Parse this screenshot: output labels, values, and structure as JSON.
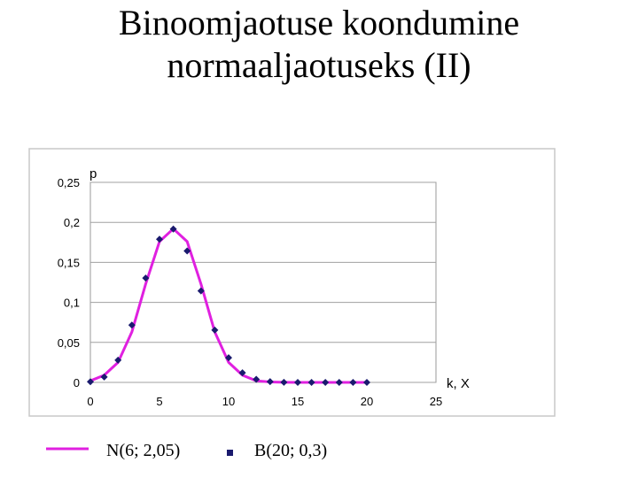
{
  "title": {
    "line1": "Binoomjaotuse koondumine",
    "line2": "normaaljaotuseks (II)"
  },
  "chart_data": {
    "type": "line",
    "ylabel": "p",
    "xlabel": "k, X",
    "xlim": [
      0,
      25
    ],
    "ylim": [
      0,
      0.25
    ],
    "x_ticks": [
      0,
      5,
      10,
      15,
      20,
      25
    ],
    "x_tick_labels": [
      "0",
      "5",
      "10",
      "15",
      "20",
      "25"
    ],
    "y_ticks": [
      0,
      0.05,
      0.1,
      0.15,
      0.2,
      0.25
    ],
    "y_tick_labels": [
      "0",
      "0,05",
      "0,1",
      "0,15",
      "0,2",
      "0,25"
    ],
    "grid": true,
    "legend_position": "bottom",
    "series": [
      {
        "name": "N(6; 2,05)",
        "kind": "line",
        "color": "#e020e0",
        "x": [
          0,
          1,
          2,
          3,
          4,
          5,
          6,
          7,
          8,
          9,
          10,
          11,
          12,
          13,
          14,
          15,
          16,
          17,
          18,
          19,
          20
        ],
        "y": [
          0.002,
          0.009,
          0.025,
          0.063,
          0.123,
          0.176,
          0.192,
          0.176,
          0.123,
          0.063,
          0.025,
          0.009,
          0.002,
          0.0005,
          0.0001,
          0,
          0,
          0,
          0,
          0,
          0
        ]
      },
      {
        "name": "B(20; 0,3)",
        "kind": "scatter",
        "color": "#1a1a6e",
        "x": [
          0,
          1,
          2,
          3,
          4,
          5,
          6,
          7,
          8,
          9,
          10,
          11,
          12,
          13,
          14,
          15,
          16,
          17,
          18,
          19,
          20
        ],
        "y": [
          0.0008,
          0.0068,
          0.0278,
          0.0716,
          0.1304,
          0.1789,
          0.1916,
          0.1643,
          0.1144,
          0.0654,
          0.0308,
          0.012,
          0.0039,
          0.001,
          0.0002,
          0,
          0,
          0,
          0,
          0,
          0
        ]
      }
    ]
  }
}
